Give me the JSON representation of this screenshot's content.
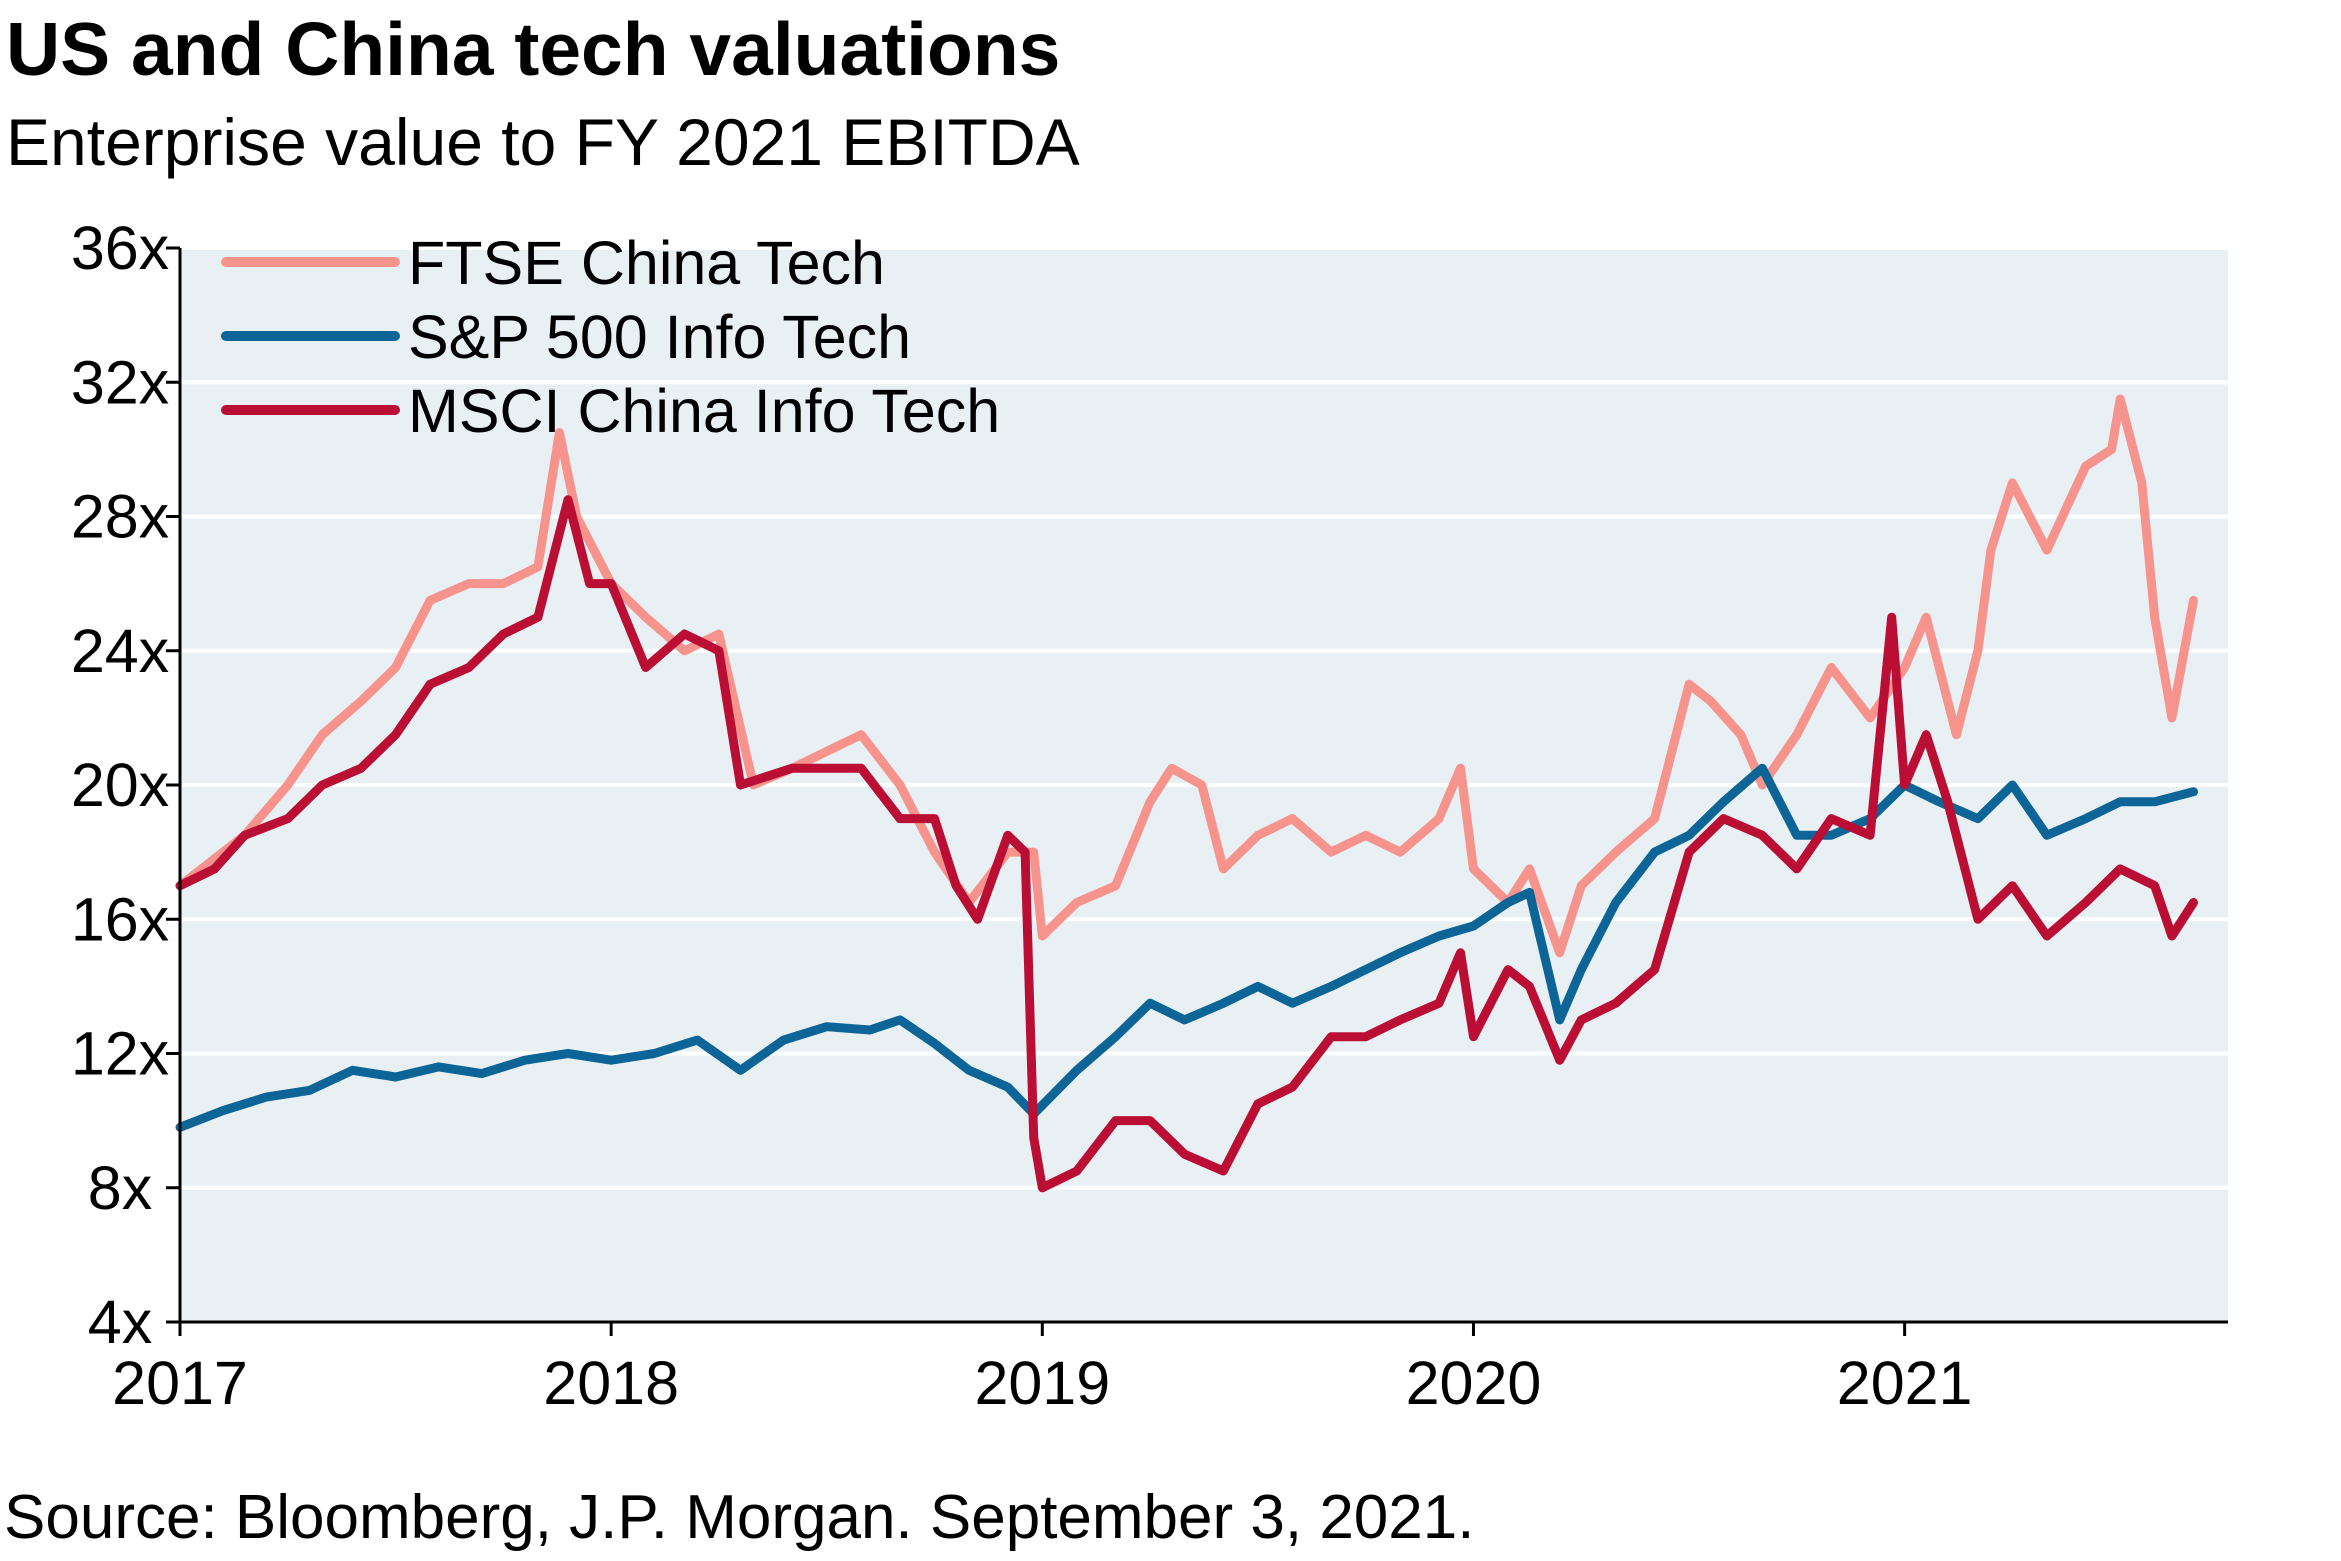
{
  "title": "US and China tech valuations",
  "subtitle": "Enterprise value to FY 2021 EBITDA",
  "source": "Source: Bloomberg, J.P. Morgan. September 3, 2021.",
  "colors": {
    "plot_background": "#e9f0f4",
    "gridline": "#ffffff",
    "axis": "#000000"
  },
  "chart_data": {
    "type": "line",
    "title": "US and China tech valuations",
    "subtitle": "Enterprise value to FY 2021 EBITDA",
    "xlabel": "",
    "ylabel": "",
    "xlim": [
      2017.0,
      2021.75
    ],
    "ylim": [
      4,
      36
    ],
    "x_ticks": [
      2017,
      2018,
      2019,
      2020,
      2021
    ],
    "x_tick_labels": [
      "2017",
      "2018",
      "2019",
      "2020",
      "2021"
    ],
    "y_ticks": [
      4,
      8,
      12,
      16,
      20,
      24,
      28,
      32,
      36
    ],
    "y_tick_labels": [
      "4x",
      "8x",
      "12x",
      "16x",
      "20x",
      "24x",
      "28x",
      "32x",
      "36x"
    ],
    "grid": "horizontal",
    "legend_position": "top-left",
    "series": [
      {
        "name": "FTSE China Tech",
        "color": "#f7938d",
        "x": [
          2017.0,
          2017.08,
          2017.15,
          2017.25,
          2017.33,
          2017.42,
          2017.5,
          2017.58,
          2017.67,
          2017.75,
          2017.83,
          2017.88,
          2017.92,
          2018.0,
          2018.08,
          2018.17,
          2018.25,
          2018.33,
          2018.42,
          2018.5,
          2018.58,
          2018.67,
          2018.75,
          2018.83,
          2018.92,
          2018.98,
          2019.0,
          2019.08,
          2019.17,
          2019.25,
          2019.3,
          2019.37,
          2019.42,
          2019.5,
          2019.58,
          2019.67,
          2019.75,
          2019.83,
          2019.92,
          2019.97,
          2020.0,
          2020.08,
          2020.13,
          2020.2,
          2020.25,
          2020.33,
          2020.42,
          2020.5,
          2020.55,
          2020.62,
          2020.67,
          2020.75,
          2020.83,
          2020.92,
          2021.0,
          2021.05,
          2021.12,
          2021.17,
          2021.2,
          2021.25,
          2021.33,
          2021.42,
          2021.48,
          2021.5,
          2021.55,
          2021.58,
          2021.62,
          2021.67
        ],
        "values": [
          17.0,
          17.8,
          18.5,
          20.0,
          21.5,
          22.5,
          23.5,
          25.5,
          26.0,
          26.0,
          26.5,
          30.5,
          28.0,
          26.0,
          25.0,
          24.0,
          24.5,
          20.0,
          20.5,
          21.0,
          21.5,
          20.0,
          18.0,
          16.5,
          18.0,
          18.0,
          15.5,
          16.5,
          17.0,
          19.5,
          20.5,
          20.0,
          17.5,
          18.5,
          19.0,
          18.0,
          18.5,
          18.0,
          19.0,
          20.5,
          17.5,
          16.5,
          17.5,
          15.0,
          17.0,
          18.0,
          19.0,
          23.0,
          22.5,
          21.5,
          20.0,
          21.5,
          23.5,
          22.0,
          23.5,
          25.0,
          21.5,
          24.0,
          27.0,
          29.0,
          27.0,
          29.5,
          30.0,
          31.5,
          29.0,
          25.0,
          22.0,
          25.5
        ]
      },
      {
        "name": "S&P 500 Info Tech",
        "color": "#0c6596",
        "x": [
          2017.0,
          2017.1,
          2017.2,
          2017.3,
          2017.4,
          2017.5,
          2017.6,
          2017.7,
          2017.8,
          2017.9,
          2018.0,
          2018.1,
          2018.2,
          2018.3,
          2018.4,
          2018.5,
          2018.6,
          2018.67,
          2018.75,
          2018.83,
          2018.92,
          2018.98,
          2019.08,
          2019.17,
          2019.25,
          2019.33,
          2019.42,
          2019.5,
          2019.58,
          2019.67,
          2019.75,
          2019.83,
          2019.92,
          2020.0,
          2020.08,
          2020.13,
          2020.2,
          2020.25,
          2020.33,
          2020.42,
          2020.5,
          2020.58,
          2020.67,
          2020.75,
          2020.83,
          2020.92,
          2021.0,
          2021.08,
          2021.17,
          2021.25,
          2021.33,
          2021.42,
          2021.5,
          2021.58,
          2021.67
        ],
        "values": [
          9.8,
          10.3,
          10.7,
          10.9,
          11.5,
          11.3,
          11.6,
          11.4,
          11.8,
          12.0,
          11.8,
          12.0,
          12.4,
          11.5,
          12.4,
          12.8,
          12.7,
          13.0,
          12.3,
          11.5,
          11.0,
          10.2,
          11.5,
          12.5,
          13.5,
          13.0,
          13.5,
          14.0,
          13.5,
          14.0,
          14.5,
          15.0,
          15.5,
          15.8,
          16.5,
          16.8,
          13.0,
          14.5,
          16.5,
          18.0,
          18.5,
          19.5,
          20.5,
          18.5,
          18.5,
          19.0,
          20.0,
          19.5,
          19.0,
          20.0,
          18.5,
          19.0,
          19.5,
          19.5,
          19.8
        ]
      },
      {
        "name": "MSCI China Info Tech",
        "color": "#bb0e34",
        "x": [
          2017.0,
          2017.08,
          2017.15,
          2017.25,
          2017.33,
          2017.42,
          2017.5,
          2017.58,
          2017.67,
          2017.75,
          2017.83,
          2017.9,
          2017.95,
          2018.0,
          2018.08,
          2018.17,
          2018.25,
          2018.3,
          2018.42,
          2018.5,
          2018.58,
          2018.67,
          2018.75,
          2018.8,
          2018.85,
          2018.92,
          2018.96,
          2018.98,
          2019.0,
          2019.08,
          2019.17,
          2019.25,
          2019.33,
          2019.42,
          2019.5,
          2019.58,
          2019.67,
          2019.75,
          2019.83,
          2019.92,
          2019.97,
          2020.0,
          2020.08,
          2020.13,
          2020.2,
          2020.25,
          2020.33,
          2020.42,
          2020.5,
          2020.58,
          2020.67,
          2020.75,
          2020.83,
          2020.92,
          2020.97,
          2021.0,
          2021.05,
          2021.1,
          2021.17,
          2021.25,
          2021.33,
          2021.42,
          2021.5,
          2021.58,
          2021.62,
          2021.67
        ],
        "values": [
          17.0,
          17.5,
          18.5,
          19.0,
          20.0,
          20.5,
          21.5,
          23.0,
          23.5,
          24.5,
          25.0,
          28.5,
          26.0,
          26.0,
          23.5,
          24.5,
          24.0,
          20.0,
          20.5,
          20.5,
          20.5,
          19.0,
          19.0,
          17.0,
          16.0,
          18.5,
          18.0,
          9.5,
          8.0,
          8.5,
          10.0,
          10.0,
          9.0,
          8.5,
          10.5,
          11.0,
          12.5,
          12.5,
          13.0,
          13.5,
          15.0,
          12.5,
          14.5,
          14.0,
          11.8,
          13.0,
          13.5,
          14.5,
          18.0,
          19.0,
          18.5,
          17.5,
          19.0,
          18.5,
          25.0,
          20.0,
          21.5,
          19.5,
          16.0,
          17.0,
          15.5,
          16.5,
          17.5,
          17.0,
          15.5,
          16.5
        ]
      }
    ]
  }
}
